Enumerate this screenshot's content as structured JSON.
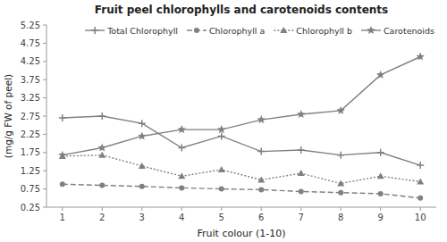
{
  "chart_data": {
    "type": "line",
    "title": "Fruit peel chlorophylls and carotenoids contents",
    "xlabel": "Fruit colour (1-10)",
    "ylabel": "(mg/g FW of peel)",
    "x": [
      1,
      2,
      3,
      4,
      5,
      6,
      7,
      8,
      9,
      10
    ],
    "series": [
      {
        "name": "Total Chlorophyll",
        "color": "#808080",
        "marker": "plus",
        "line_style": "solid",
        "values": [
          2.7,
          2.75,
          2.55,
          1.88,
          2.2,
          1.78,
          1.82,
          1.68,
          1.75,
          1.4
        ]
      },
      {
        "name": "Chlorophyll a",
        "color": "#808080",
        "marker": "circle",
        "line_style": "dashed",
        "values": [
          0.88,
          0.85,
          0.82,
          0.78,
          0.75,
          0.73,
          0.68,
          0.65,
          0.62,
          0.5
        ]
      },
      {
        "name": "Chlorophyll b",
        "color": "#808080",
        "marker": "triangle",
        "line_style": "dotted",
        "values": [
          1.65,
          1.68,
          1.38,
          1.1,
          1.28,
          1.0,
          1.18,
          0.9,
          1.1,
          0.95
        ]
      },
      {
        "name": "Carotenoids",
        "color": "#808080",
        "marker": "star",
        "line_style": "solid",
        "values": [
          1.68,
          1.88,
          2.2,
          2.38,
          2.38,
          2.65,
          2.8,
          2.9,
          3.88,
          4.38
        ]
      }
    ],
    "xlim": [
      0.6,
      10.4
    ],
    "xticks": [
      1,
      2,
      3,
      4,
      5,
      6,
      7,
      8,
      9,
      10
    ],
    "ylim": [
      0.25,
      5.25
    ],
    "yticks": [
      0.25,
      0.75,
      1.25,
      1.75,
      2.25,
      2.75,
      3.25,
      3.75,
      4.25,
      4.75,
      5.25
    ],
    "grid": false,
    "legend": "upper right"
  }
}
